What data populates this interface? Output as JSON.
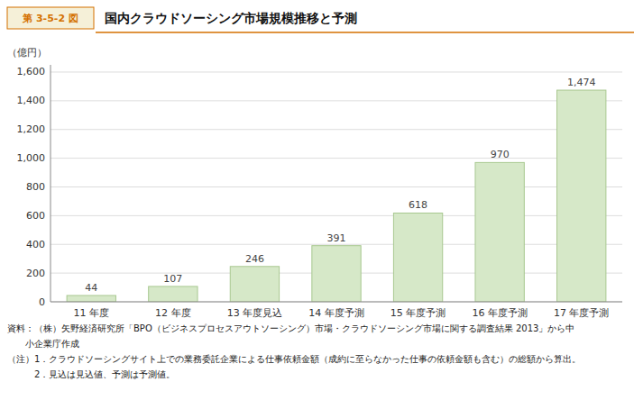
{
  "chart_data": {
    "type": "bar",
    "title": "国内クラウドソーシング市場規模推移と予測",
    "ylabel": "（億円）",
    "annotations": [
      "第 3-5-2 図",
      "資料：（株）矢野経済研究所「BPO（ビジネスプロセスアウトソーシング）市場・クラウドソーシング市場に関する調査結果 2013」から中",
      "　　小企業庁作成",
      "（注）1．クラウドソーシングサイト上での業務委託企業による仕事依頼金額（成約に至らなかった仕事の依頼金額も含む）の総額から算出。",
      "　　　2．見込は見込値、予測は予測値。"
    ],
    "categories": [
      "11 年度",
      "12 年度",
      "13 年度見込",
      "14 年度予測",
      "15 年度予測",
      "16 年度予測",
      "17 年度予測"
    ],
    "values": [
      44,
      107,
      246,
      391,
      618,
      970,
      1474
    ],
    "value_labels": [
      "44",
      "107",
      "246",
      "391",
      "618",
      "970",
      "1,474"
    ],
    "data_labels": true,
    "color": "#d6e8c8",
    "ylim": [
      0,
      1650
    ],
    "yticks": [
      0,
      200,
      400,
      600,
      800,
      {
        "value": 1000,
        "label": "1,000"
      },
      {
        "value": 1200,
        "label": "1,200"
      },
      {
        "value": 1400,
        "label": "1,400"
      },
      {
        "value": 1600,
        "label": "1,600"
      }
    ],
    "grid": true
  }
}
